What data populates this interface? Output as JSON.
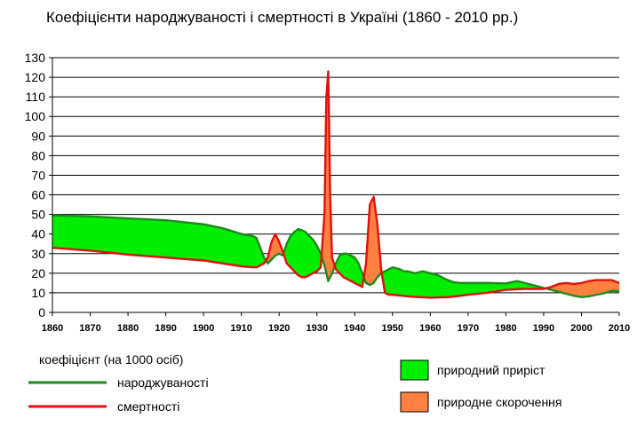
{
  "chart_data": {
    "type": "area",
    "title": "Коефіцієнти народжуваності і смертності в Україні (1860 - 2010 рр.)",
    "xlabel": "",
    "ylabel": "",
    "xlim": [
      1860,
      2010
    ],
    "ylim": [
      0,
      130
    ],
    "y_ticks": [
      0,
      10,
      20,
      30,
      40,
      50,
      60,
      70,
      80,
      90,
      100,
      110,
      120,
      130
    ],
    "x_ticks": [
      1860,
      1870,
      1880,
      1890,
      1900,
      1910,
      1920,
      1930,
      1940,
      1950,
      1960,
      1970,
      1980,
      1990,
      2000,
      2010
    ],
    "grid": "horizontal",
    "legend_title": "коефіцієнт  (на 1000 осіб)",
    "series": [
      {
        "name": "народжуваності",
        "color": "#1e8a1e",
        "points": [
          [
            1860,
            49.5
          ],
          [
            1870,
            49
          ],
          [
            1880,
            48
          ],
          [
            1890,
            47
          ],
          [
            1900,
            45
          ],
          [
            1905,
            43
          ],
          [
            1910,
            40
          ],
          [
            1913,
            39
          ],
          [
            1914,
            38
          ],
          [
            1915,
            33
          ],
          [
            1916,
            28
          ],
          [
            1917,
            25
          ],
          [
            1918,
            27
          ],
          [
            1919,
            29
          ],
          [
            1920,
            30
          ],
          [
            1921,
            29
          ],
          [
            1922,
            35
          ],
          [
            1923,
            39
          ],
          [
            1924,
            41
          ],
          [
            1925,
            42.5
          ],
          [
            1926,
            42
          ],
          [
            1927,
            41
          ],
          [
            1928,
            39
          ],
          [
            1929,
            37
          ],
          [
            1930,
            34
          ],
          [
            1931,
            30
          ],
          [
            1932,
            24
          ],
          [
            1933,
            16
          ],
          [
            1934,
            20
          ],
          [
            1935,
            25
          ],
          [
            1936,
            29
          ],
          [
            1937,
            30
          ],
          [
            1938,
            30
          ],
          [
            1939,
            29
          ],
          [
            1940,
            28
          ],
          [
            1941,
            25
          ],
          [
            1942,
            20
          ],
          [
            1943,
            15
          ],
          [
            1944,
            14
          ],
          [
            1945,
            15
          ],
          [
            1946,
            18
          ],
          [
            1947,
            20
          ],
          [
            1948,
            21
          ],
          [
            1949,
            22
          ],
          [
            1950,
            23
          ],
          [
            1951,
            22.5
          ],
          [
            1952,
            22
          ],
          [
            1953,
            21
          ],
          [
            1954,
            21
          ],
          [
            1955,
            20.5
          ],
          [
            1956,
            20
          ],
          [
            1957,
            20.5
          ],
          [
            1958,
            21
          ],
          [
            1959,
            20.5
          ],
          [
            1960,
            20
          ],
          [
            1962,
            19
          ],
          [
            1964,
            17
          ],
          [
            1966,
            15.5
          ],
          [
            1968,
            15
          ],
          [
            1970,
            15
          ],
          [
            1975,
            15
          ],
          [
            1980,
            14.8
          ],
          [
            1983,
            16
          ],
          [
            1985,
            15
          ],
          [
            1988,
            13.5
          ],
          [
            1990,
            12.5
          ],
          [
            1992,
            11.5
          ],
          [
            1994,
            10.5
          ],
          [
            1996,
            9.5
          ],
          [
            1998,
            8.5
          ],
          [
            2000,
            7.8
          ],
          [
            2002,
            8.2
          ],
          [
            2004,
            9
          ],
          [
            2006,
            9.8
          ],
          [
            2008,
            11
          ],
          [
            2010,
            10.8
          ]
        ]
      },
      {
        "name": "смертності",
        "color": "#e01010",
        "points": [
          [
            1860,
            33
          ],
          [
            1870,
            31.5
          ],
          [
            1880,
            29.5
          ],
          [
            1890,
            28
          ],
          [
            1900,
            26.5
          ],
          [
            1905,
            25
          ],
          [
            1910,
            23.5
          ],
          [
            1913,
            23
          ],
          [
            1914,
            23
          ],
          [
            1915,
            24
          ],
          [
            1916,
            25
          ],
          [
            1917,
            28
          ],
          [
            1918,
            36
          ],
          [
            1919,
            40
          ],
          [
            1920,
            36
          ],
          [
            1921,
            31
          ],
          [
            1922,
            25
          ],
          [
            1923,
            23
          ],
          [
            1924,
            21
          ],
          [
            1925,
            19
          ],
          [
            1926,
            18
          ],
          [
            1927,
            18
          ],
          [
            1928,
            19
          ],
          [
            1929,
            20
          ],
          [
            1930,
            21
          ],
          [
            1931,
            23
          ],
          [
            1932,
            50
          ],
          [
            1932.5,
            110
          ],
          [
            1933,
            123
          ],
          [
            1933.5,
            60
          ],
          [
            1934,
            28
          ],
          [
            1935,
            22
          ],
          [
            1936,
            20
          ],
          [
            1937,
            18
          ],
          [
            1938,
            17
          ],
          [
            1939,
            16
          ],
          [
            1940,
            15
          ],
          [
            1941,
            14
          ],
          [
            1942,
            13
          ],
          [
            1943,
            25
          ],
          [
            1944,
            55
          ],
          [
            1945,
            59
          ],
          [
            1946,
            45
          ],
          [
            1947,
            22
          ],
          [
            1948,
            10
          ],
          [
            1949,
            9
          ],
          [
            1950,
            9
          ],
          [
            1955,
            8
          ],
          [
            1960,
            7.5
          ],
          [
            1965,
            7.8
          ],
          [
            1970,
            9
          ],
          [
            1975,
            10
          ],
          [
            1980,
            11.5
          ],
          [
            1985,
            12
          ],
          [
            1990,
            12
          ],
          [
            1992,
            13
          ],
          [
            1994,
            14.5
          ],
          [
            1996,
            15
          ],
          [
            1998,
            14.5
          ],
          [
            2000,
            15
          ],
          [
            2002,
            16
          ],
          [
            2004,
            16.5
          ],
          [
            2006,
            16.5
          ],
          [
            2008,
            16.5
          ],
          [
            2010,
            15
          ]
        ]
      }
    ],
    "fill_legend": [
      {
        "name": "природний приріст",
        "color": "#00ee00"
      },
      {
        "name": "природне скорочення",
        "color": "#ff8040"
      }
    ]
  }
}
